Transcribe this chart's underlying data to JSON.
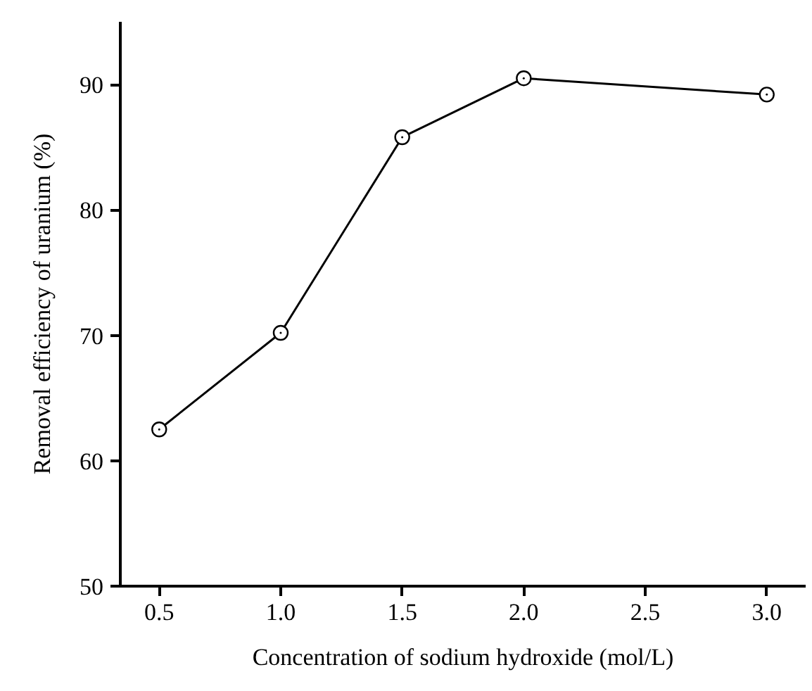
{
  "chart_data": {
    "type": "line",
    "xlabel": "Concentration of sodium hydroxide (mol/L)",
    "ylabel": "Removal efficiency of uranium (%)",
    "x": [
      0.5,
      1.0,
      1.5,
      2.0,
      3.0
    ],
    "series": [
      {
        "color": "#000000",
        "values": [
          62.5,
          70.2,
          85.8,
          90.5,
          89.2
        ]
      }
    ],
    "xlim": [
      0.34,
      3.16
    ],
    "xticks": [
      {
        "value": 0.5,
        "label": "0.5"
      },
      {
        "value": 1.0,
        "label": "1.0"
      },
      {
        "value": 1.5,
        "label": "1.5"
      },
      {
        "value": 2.0,
        "label": "2.0"
      },
      {
        "value": 2.5,
        "label": "2.5"
      },
      {
        "value": 3.0,
        "label": "3.0"
      }
    ],
    "ylim": [
      50,
      95
    ],
    "yticks": [
      50,
      60,
      70,
      80,
      90
    ],
    "grid": false,
    "marker": "circle",
    "line_style": "solid"
  }
}
